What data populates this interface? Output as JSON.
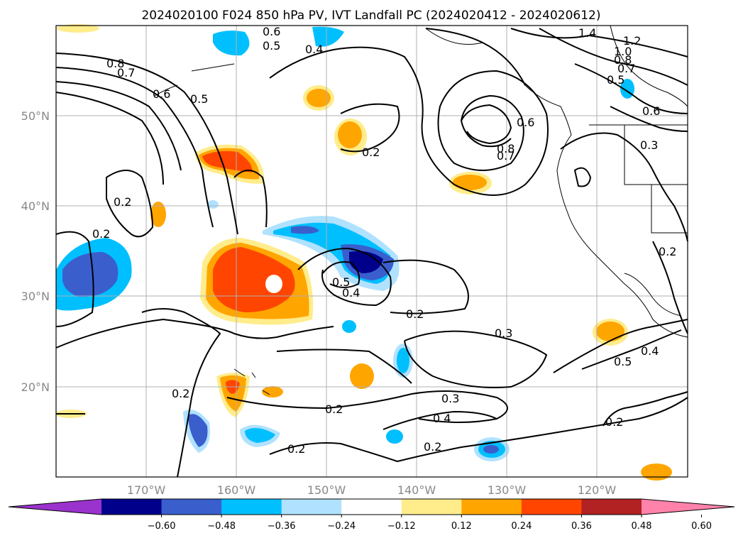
{
  "title": "2024020100 F024 850 hPa PV, IVT Landfall PC (2024020412 - 2024020612)",
  "lat_labels": [
    "50°N",
    "40°N",
    "30°N",
    "20°N"
  ],
  "lon_labels": [
    "170°W",
    "160°W",
    "150°W",
    "140°W",
    "130°W",
    "120°W"
  ],
  "colorbar": {
    "ticks": [
      "−0.60",
      "−0.48",
      "−0.36",
      "−0.24",
      "−0.12",
      "0.12",
      "0.24",
      "0.36",
      "0.48",
      "0.60"
    ],
    "colors": [
      "#9a32cd",
      "#00008b",
      "#3a5fcd",
      "#00bfff",
      "#b0e2ff",
      "#ffffff",
      "#ffec8b",
      "#ffa500",
      "#ff4500",
      "#b22222",
      "#ff82ab"
    ]
  },
  "contour_labels": [
    "0.6",
    "0.5",
    "0.4",
    "0.8",
    "0.7",
    "0.6",
    "0.5",
    "0.2",
    "0.2",
    "0.2",
    "0.8",
    "0.7",
    "0.6",
    "1.4",
    "1.2",
    "1.0",
    "0.8",
    "0.7",
    "0.5",
    "0.6",
    "0.3",
    "0.5",
    "0.4",
    "0.2",
    "0.2",
    "0.3",
    "0.2",
    "0.3",
    "0.4",
    "0.2",
    "0.2",
    "0.2",
    "0.5",
    "0.4",
    "0.2"
  ]
}
